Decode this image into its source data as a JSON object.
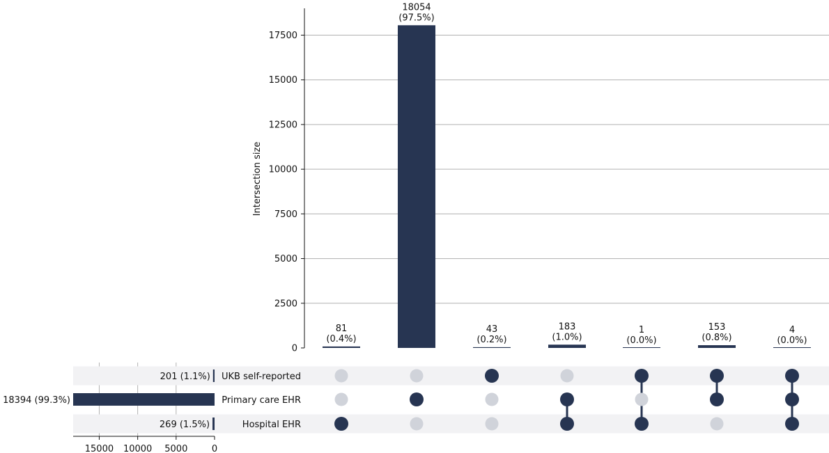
{
  "chart_data": {
    "type": "bar",
    "subtype": "upset",
    "ylabel": "Intersection size",
    "ylim": [
      0,
      19000
    ],
    "yticks": [
      0,
      2500,
      5000,
      7500,
      10000,
      12500,
      15000,
      17500
    ],
    "grid": true,
    "colors": {
      "bar": "#273552",
      "dot_active": "#273552",
      "dot_inactive": "#d0d3da",
      "row_band": "#f2f2f4",
      "grid": "#b0b0b0"
    },
    "sets": [
      {
        "name": "UKB self-reported",
        "size": 201,
        "size_label": "201 (1.1%)"
      },
      {
        "name": "Primary care EHR",
        "size": 18394,
        "size_label": "18394 (99.3%)"
      },
      {
        "name": "Hospital EHR",
        "size": 269,
        "size_label": "269 (1.5%)"
      }
    ],
    "set_size_axis": {
      "ticks": [
        15000,
        10000,
        5000,
        0
      ],
      "max": 18394
    },
    "intersections": [
      {
        "value": 81,
        "count_label": "81",
        "pct_label": "(0.4%)",
        "members": [
          false,
          false,
          true
        ]
      },
      {
        "value": 18054,
        "count_label": "18054",
        "pct_label": "(97.5%)",
        "members": [
          false,
          true,
          false
        ]
      },
      {
        "value": 43,
        "count_label": "43",
        "pct_label": "(0.2%)",
        "members": [
          true,
          false,
          false
        ]
      },
      {
        "value": 183,
        "count_label": "183",
        "pct_label": "(1.0%)",
        "members": [
          false,
          true,
          true
        ]
      },
      {
        "value": 1,
        "count_label": "1",
        "pct_label": "(0.0%)",
        "members": [
          true,
          false,
          true
        ]
      },
      {
        "value": 153,
        "count_label": "153",
        "pct_label": "(0.8%)",
        "members": [
          true,
          true,
          false
        ]
      },
      {
        "value": 4,
        "count_label": "4",
        "pct_label": "(0.0%)",
        "members": [
          true,
          true,
          true
        ]
      }
    ]
  }
}
